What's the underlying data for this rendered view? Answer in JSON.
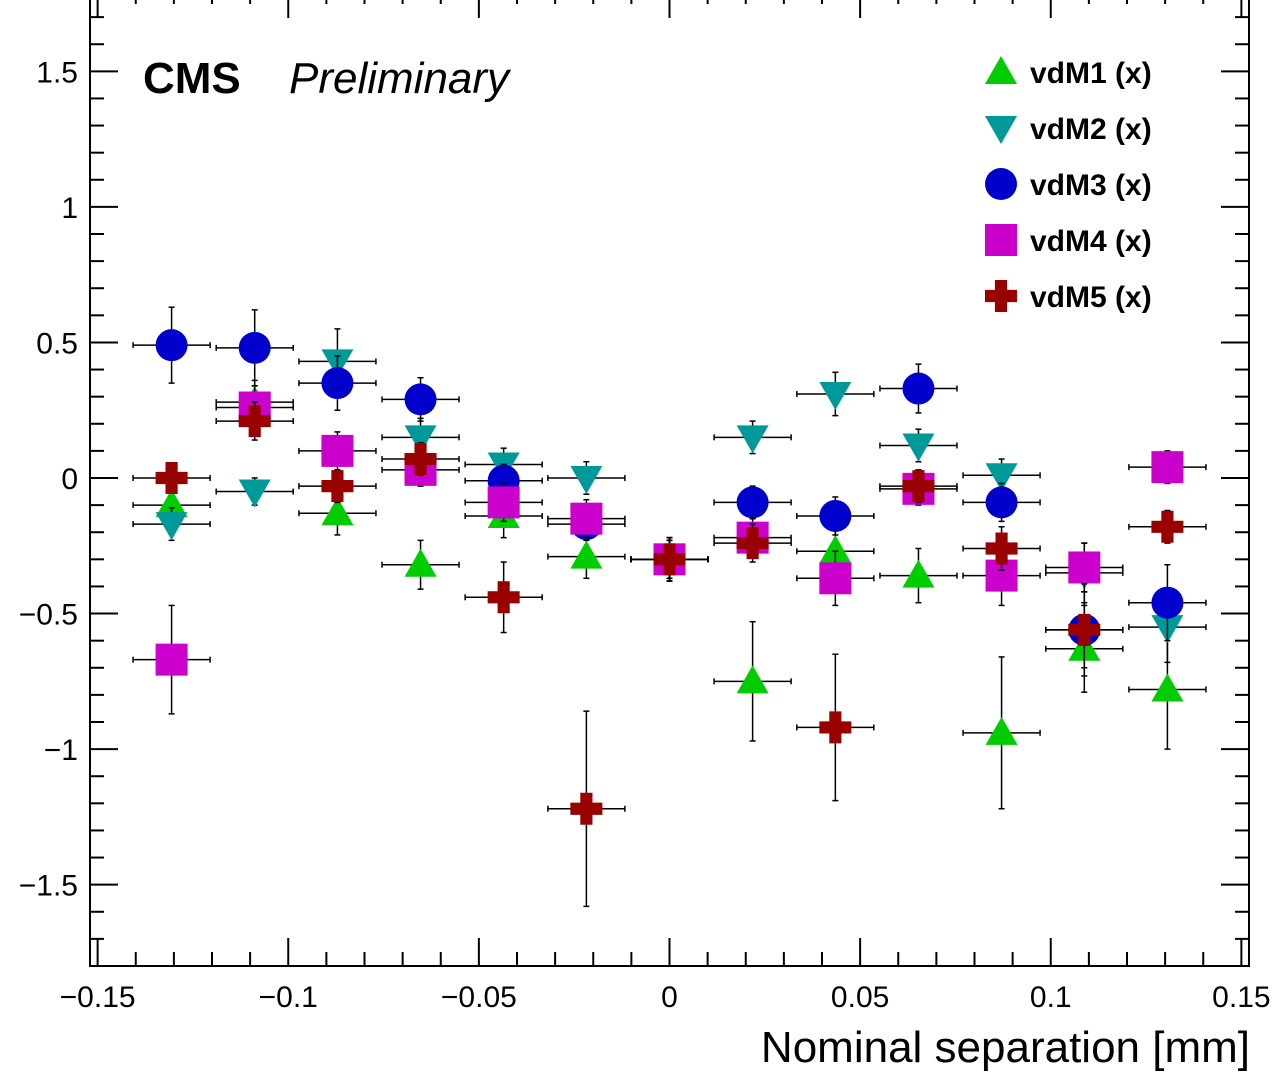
{
  "annotations": {
    "experiment": "CMS",
    "status": "Preliminary"
  },
  "chart_data": {
    "type": "scatter",
    "title": "",
    "xlabel": "Nominal separation [mm]",
    "ylabel": "",
    "xlim": [
      -0.152,
      0.152
    ],
    "ylim": [
      -1.8,
      1.8
    ],
    "grid": false,
    "legend_placement": "top-right",
    "xticks": [
      {
        "value": -0.15,
        "label": "−0.15"
      },
      {
        "value": -0.1,
        "label": "−0.1"
      },
      {
        "value": -0.05,
        "label": "−0.05"
      },
      {
        "value": 0,
        "label": "0"
      },
      {
        "value": 0.05,
        "label": "0.05"
      },
      {
        "value": 0.1,
        "label": "0.1"
      },
      {
        "value": 0.15,
        "label": "0.15"
      }
    ],
    "yticks": [
      {
        "value": -1.5,
        "label": "−1.5"
      },
      {
        "value": -1,
        "label": "−1"
      },
      {
        "value": -0.5,
        "label": "−0.5"
      },
      {
        "value": 0,
        "label": "0"
      },
      {
        "value": 0.5,
        "label": "0.5"
      },
      {
        "value": 1,
        "label": "1"
      },
      {
        "value": 1.5,
        "label": "1.5"
      }
    ],
    "x_error": 0.0101,
    "series": [
      {
        "name": "vdM1 (x)",
        "marker": "triangle-up",
        "color": "#00cc00",
        "points": [
          {
            "x": -0.1306,
            "y": -0.1,
            "yerr": 0.08
          },
          {
            "x": -0.1088,
            "y": 0.28,
            "yerr": 0.08
          },
          {
            "x": -0.0871,
            "y": -0.13,
            "yerr": 0.08
          },
          {
            "x": -0.0653,
            "y": -0.32,
            "yerr": 0.09
          },
          {
            "x": -0.0435,
            "y": -0.14,
            "yerr": 0.08
          },
          {
            "x": -0.0218,
            "y": -0.29,
            "yerr": 0.08
          },
          {
            "x": 0.0,
            "y": -0.3,
            "yerr": 0.08
          },
          {
            "x": 0.0218,
            "y": -0.75,
            "yerr": 0.22
          },
          {
            "x": 0.0435,
            "y": -0.27,
            "yerr": 0.08
          },
          {
            "x": 0.0653,
            "y": -0.36,
            "yerr": 0.1
          },
          {
            "x": 0.0871,
            "y": -0.94,
            "yerr": 0.28
          },
          {
            "x": 0.1088,
            "y": -0.63,
            "yerr": 0.16
          },
          {
            "x": 0.1306,
            "y": -0.78,
            "yerr": 0.22
          }
        ]
      },
      {
        "name": "vdM2 (x)",
        "marker": "triangle-down",
        "color": "#009999",
        "points": [
          {
            "x": -0.1306,
            "y": -0.17,
            "yerr": 0.06
          },
          {
            "x": -0.1088,
            "y": -0.05,
            "yerr": 0.05
          },
          {
            "x": -0.0871,
            "y": 0.43,
            "yerr": 0.12
          },
          {
            "x": -0.0653,
            "y": 0.15,
            "yerr": 0.07
          },
          {
            "x": -0.0435,
            "y": 0.05,
            "yerr": 0.06
          },
          {
            "x": -0.0218,
            "y": 0.0,
            "yerr": 0.06
          },
          {
            "x": 0.0,
            "y": -0.3,
            "yerr": 0.07
          },
          {
            "x": 0.0218,
            "y": 0.15,
            "yerr": 0.06
          },
          {
            "x": 0.0435,
            "y": 0.31,
            "yerr": 0.08
          },
          {
            "x": 0.0653,
            "y": 0.12,
            "yerr": 0.06
          },
          {
            "x": 0.0871,
            "y": 0.01,
            "yerr": 0.06
          },
          {
            "x": 0.1088,
            "y": -0.35,
            "yerr": 0.11
          },
          {
            "x": 0.1306,
            "y": -0.55,
            "yerr": 0.13
          }
        ]
      },
      {
        "name": "vdM3 (x)",
        "marker": "circle",
        "color": "#0000cc",
        "points": [
          {
            "x": -0.1306,
            "y": 0.49,
            "yerr": 0.14
          },
          {
            "x": -0.1088,
            "y": 0.48,
            "yerr": 0.14
          },
          {
            "x": -0.0871,
            "y": 0.35,
            "yerr": 0.1
          },
          {
            "x": -0.0653,
            "y": 0.29,
            "yerr": 0.08
          },
          {
            "x": -0.0435,
            "y": -0.01,
            "yerr": 0.06
          },
          {
            "x": -0.0218,
            "y": -0.17,
            "yerr": 0.06
          },
          {
            "x": 0.0,
            "y": -0.3,
            "yerr": 0.07
          },
          {
            "x": 0.0218,
            "y": -0.09,
            "yerr": 0.06
          },
          {
            "x": 0.0435,
            "y": -0.14,
            "yerr": 0.07
          },
          {
            "x": 0.0653,
            "y": 0.33,
            "yerr": 0.09
          },
          {
            "x": 0.0871,
            "y": -0.09,
            "yerr": 0.07
          },
          {
            "x": 0.1088,
            "y": -0.56,
            "yerr": 0.14
          },
          {
            "x": 0.1306,
            "y": -0.46,
            "yerr": 0.14
          }
        ]
      },
      {
        "name": "vdM4 (x)",
        "marker": "square",
        "color": "#cc00cc",
        "points": [
          {
            "x": -0.1306,
            "y": -0.67,
            "yerr": 0.2
          },
          {
            "x": -0.1088,
            "y": 0.26,
            "yerr": 0.08
          },
          {
            "x": -0.0871,
            "y": 0.1,
            "yerr": 0.07
          },
          {
            "x": -0.0653,
            "y": 0.03,
            "yerr": 0.06
          },
          {
            "x": -0.0435,
            "y": -0.09,
            "yerr": 0.07
          },
          {
            "x": -0.0218,
            "y": -0.15,
            "yerr": 0.07
          },
          {
            "x": 0.0,
            "y": -0.3,
            "yerr": 0.08
          },
          {
            "x": 0.0218,
            "y": -0.22,
            "yerr": 0.07
          },
          {
            "x": 0.0435,
            "y": -0.37,
            "yerr": 0.1
          },
          {
            "x": 0.0653,
            "y": -0.04,
            "yerr": 0.06
          },
          {
            "x": 0.0871,
            "y": -0.36,
            "yerr": 0.11
          },
          {
            "x": 0.1088,
            "y": -0.33,
            "yerr": 0.09
          },
          {
            "x": 0.1306,
            "y": 0.04,
            "yerr": 0.06
          }
        ]
      },
      {
        "name": "vdM5 (x)",
        "marker": "cross",
        "color": "#990000",
        "points": [
          {
            "x": -0.1306,
            "y": 0.0,
            "yerr": 0.05
          },
          {
            "x": -0.1088,
            "y": 0.21,
            "yerr": 0.07
          },
          {
            "x": -0.0871,
            "y": -0.03,
            "yerr": 0.06
          },
          {
            "x": -0.0653,
            "y": 0.07,
            "yerr": 0.06
          },
          {
            "x": -0.0435,
            "y": -0.44,
            "yerr": 0.13
          },
          {
            "x": -0.0218,
            "y": -1.22,
            "yerr": 0.36
          },
          {
            "x": 0.0,
            "y": -0.3,
            "yerr": 0.08
          },
          {
            "x": 0.0218,
            "y": -0.24,
            "yerr": 0.07
          },
          {
            "x": 0.0435,
            "y": -0.92,
            "yerr": 0.27
          },
          {
            "x": 0.0653,
            "y": -0.03,
            "yerr": 0.06
          },
          {
            "x": 0.0871,
            "y": -0.26,
            "yerr": 0.08
          },
          {
            "x": 0.1088,
            "y": -0.56,
            "yerr": 0.17
          },
          {
            "x": 0.1306,
            "y": -0.18,
            "yerr": 0.06
          }
        ]
      }
    ]
  }
}
